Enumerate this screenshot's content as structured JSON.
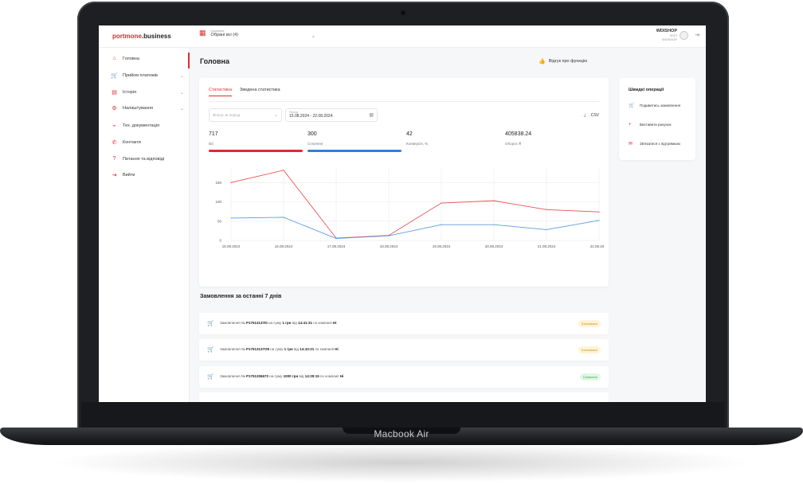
{
  "device": {
    "label": "Macbook Air"
  },
  "topbar": {
    "logo_brand": "portmone",
    "logo_suffix": ".business",
    "company_caption": "Компанія",
    "company_value": "Обрані всі (4)",
    "user_name": "WDISHOP",
    "user_role": "ФОП",
    "user_company": "WDISHOP"
  },
  "sidebar": {
    "items": [
      {
        "label": "Головна",
        "icon": "home-icon",
        "glyph": "⌂",
        "has_chevron": false
      },
      {
        "label": "Прийом платежів",
        "icon": "basket-icon",
        "glyph": "🛒",
        "has_chevron": true
      },
      {
        "label": "Історія",
        "icon": "document-icon",
        "glyph": "▤",
        "has_chevron": true
      },
      {
        "label": "Налаштування",
        "icon": "gear-icon",
        "glyph": "⚙",
        "has_chevron": true
      },
      {
        "label": "Тех. документація",
        "icon": "plug-icon",
        "glyph": "⌁",
        "has_chevron": false
      },
      {
        "label": "Контакти",
        "icon": "phone-icon",
        "glyph": "✆",
        "has_chevron": false
      },
      {
        "label": "Питання та відповіді",
        "icon": "question-icon",
        "glyph": "?",
        "has_chevron": false
      },
      {
        "label": "Вийти",
        "icon": "logout-icon",
        "glyph": "⇥",
        "has_chevron": false
      }
    ]
  },
  "main": {
    "title": "Головна",
    "feedback": "Відгук про функцію",
    "tabs": [
      {
        "label": "Статистика",
        "active": true
      },
      {
        "label": "Зведена статистика",
        "active": false
      }
    ],
    "filter_placeholder": "Фільтр за період",
    "period_caption": "Період",
    "period_value": "15.08.2024 - 22.08.2024",
    "csv_label": ".CSV",
    "metrics": [
      {
        "value": "717",
        "label": "Всі",
        "color": "#e02a2f"
      },
      {
        "value": "300",
        "label": "Сплачені",
        "color": "#2f80d9"
      },
      {
        "value": "42",
        "label": "Конверсія, %",
        "color": ""
      },
      {
        "value": "405838.24",
        "label": "Оборот, ₴",
        "color": ""
      }
    ]
  },
  "chart_data": {
    "type": "line",
    "x": [
      "15.08.2024",
      "16.08.2024",
      "17.08.2024",
      "18.08.2024",
      "19.08.2024",
      "20.08.2024",
      "21.08.2024",
      "22.08.2024"
    ],
    "yticks": [
      0,
      50,
      100,
      150
    ],
    "ylim": [
      0,
      190
    ],
    "series": [
      {
        "color": "#ee4d52",
        "values": [
          150,
          182,
          6,
          13,
          97,
          103,
          80,
          74
        ]
      },
      {
        "color": "#5a9be0",
        "values": [
          58,
          60,
          5,
          12,
          41,
          41,
          28,
          52
        ]
      }
    ]
  },
  "quick_ops": {
    "title": "Швидкі операції",
    "items": [
      {
        "label": "Подивитись замовлення",
        "icon": "basket-icon",
        "glyph": "🛒"
      },
      {
        "label": "Виставити рахунок",
        "icon": "plus-icon",
        "glyph": "+"
      },
      {
        "label": "Зв'язатися з підтримкою",
        "icon": "chat-icon",
        "glyph": "✉"
      }
    ]
  },
  "orders": {
    "title": "Замовлення за останні 7 днів",
    "items": [
      {
        "prefix": "Замовлення №",
        "number": "P17513137I0",
        "sum_prefix": "на суму",
        "sum": "1 грн",
        "time_prefix": "від",
        "time": "14:41:31",
        "company_prefix": "по компанії",
        "company": "Hi",
        "status": "Блоковано",
        "status_type": "blocked"
      },
      {
        "prefix": "Замовлення №",
        "number": "P17513137O8",
        "sum_prefix": "на суму",
        "sum": "1 грн",
        "time_prefix": "від",
        "time": "14:43:21",
        "company_prefix": "по компанії",
        "company": "Hi",
        "status": "Блоковано",
        "status_type": "blocked"
      },
      {
        "prefix": "Замовлення №",
        "number": "P1751306672",
        "sum_prefix": "на суму",
        "sum": "1000 грн",
        "time_prefix": "від",
        "time": "14:29:15",
        "company_prefix": "по компанії",
        "company": "Hi",
        "status": "Сплачено",
        "status_type": "paid"
      }
    ]
  }
}
